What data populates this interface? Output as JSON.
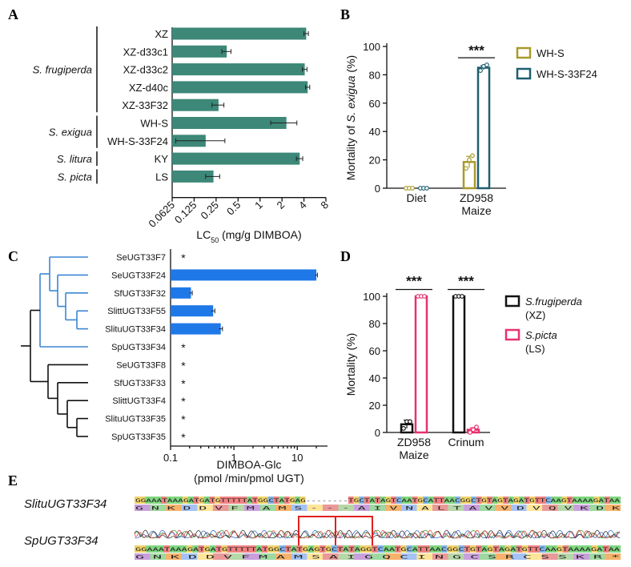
{
  "panels": {
    "A": "A",
    "B": "B",
    "C": "C",
    "D": "D",
    "E": "E"
  },
  "chart_data": [
    {
      "panel": "A",
      "type": "bar",
      "orientation": "horizontal",
      "scale": "log2",
      "categories": [
        "XZ",
        "XZ-d33c1",
        "XZ-d33c2",
        "XZ-d40c",
        "XZ-33F32",
        "WH-S",
        "WH-S-33F24",
        "KY",
        "LS"
      ],
      "groups": [
        {
          "label": "S. frugiperda",
          "members": [
            "XZ",
            "XZ-d33c1",
            "XZ-d33c2",
            "XZ-d40c",
            "XZ-33F32"
          ]
        },
        {
          "label": "S. exigua",
          "members": [
            "WH-S",
            "WH-S-33F24"
          ]
        },
        {
          "label": "S. litura",
          "members": [
            "KY"
          ]
        },
        {
          "label": "S. picta",
          "members": [
            "LS"
          ]
        }
      ],
      "values": [
        4.3,
        0.35,
        4.1,
        4.5,
        0.27,
        2.3,
        0.18,
        3.5,
        0.23
      ],
      "errors": [
        0.3,
        0.05,
        0.3,
        0.3,
        0.05,
        0.9,
        0.15,
        0.35,
        0.05
      ],
      "xticks": [
        "0.0625",
        "0.125",
        "0.25",
        "0.5",
        "1",
        "2",
        "4",
        "8"
      ],
      "xlabel_main": "LC",
      "xlabel_sub": "50",
      "xlabel_rest": " (mg/g DIMBOA)",
      "color": "#3d8878"
    },
    {
      "panel": "B",
      "type": "bar",
      "categories": [
        "Diet",
        "ZD958"
      ],
      "category_sublabels": [
        "",
        "Maize"
      ],
      "series": [
        {
          "name": "WH-S",
          "color": "#a89a2a",
          "values": [
            0,
            18.5
          ],
          "errors": [
            0,
            4
          ],
          "points": [
            [
              0,
              0,
              0
            ],
            [
              14,
              20,
              23
            ]
          ]
        },
        {
          "name": "WH-S-33F24",
          "color": "#1f5f70",
          "values": [
            0,
            85
          ],
          "errors": [
            0,
            1.5
          ],
          "points": [
            [
              0,
              0,
              0
            ],
            [
              83,
              86,
              87
            ]
          ]
        }
      ],
      "ylabel_prefix": "Mortality of ",
      "ylabel_italic": "S. exigua",
      "ylabel_suffix": " (%)",
      "yticks": [
        0,
        20,
        40,
        60,
        80,
        100
      ],
      "ylim": [
        0,
        100
      ],
      "significance": "***"
    },
    {
      "panel": "C",
      "type": "bar",
      "orientation": "horizontal",
      "scale": "log10",
      "categories": [
        "SeUGT33F7",
        "SeUGT33F24",
        "SfUGT33F32",
        "SlittUGT33F55",
        "SlituUGT33F34",
        "SpUGT33F34",
        "SeUGT33F8",
        "SfUGT33F33",
        "SlittUGT33F4",
        "SlituUGT33F35",
        "SpUGT33F35"
      ],
      "highlight": [
        true,
        true,
        true,
        true,
        true,
        true,
        false,
        false,
        false,
        false,
        false
      ],
      "values": [
        null,
        20,
        0.21,
        0.47,
        0.62,
        null,
        null,
        null,
        null,
        null,
        null
      ],
      "errors": [
        0,
        0.8,
        0.01,
        0.03,
        0.04,
        0,
        0,
        0,
        0,
        0,
        0
      ],
      "nd_marker": "*",
      "xticks": [
        "0.1",
        "1",
        "10"
      ],
      "xlabel": "DIMBOA-Glc",
      "xlabel2": "(pmol /min/pmol UGT)",
      "color": "#1f78e8",
      "highlight_color": "#3a86d4"
    },
    {
      "panel": "D",
      "type": "bar",
      "categories": [
        "ZD958",
        "Crinum"
      ],
      "category_sublabels": [
        "Maize",
        ""
      ],
      "series": [
        {
          "name": "S.frugiperda",
          "name2": "(XZ)",
          "color": "#111111",
          "values": [
            6,
            100
          ],
          "errors": [
            3,
            0
          ],
          "points": [
            [
              3,
              8,
              8
            ],
            [
              100,
              100,
              100
            ]
          ]
        },
        {
          "name": "S.picta",
          "name2": "(LS)",
          "color": "#e8316e",
          "values": [
            100,
            2
          ],
          "errors": [
            0,
            1.5
          ],
          "points": [
            [
              100,
              100,
              100
            ],
            [
              0,
              2,
              4
            ]
          ]
        }
      ],
      "ylabel": "Mortality (%)",
      "yticks": [
        0,
        20,
        40,
        60,
        80,
        100
      ],
      "ylim": [
        0,
        100
      ],
      "significance": [
        "***",
        "***"
      ]
    }
  ],
  "panel_e": {
    "label1": "SlituUGT33F34",
    "label2": "SpUGT33F34",
    "seq1": "GGAAATAAAGATGATGTTTTTATGGCTATGAG--------TGCTATAGTCAATGCATTAACGGCTGTAGTAGATGTTCAAGTAAAAGATAA",
    "aa1": "G  N  K  D  D  V  F  M  A  M  S  -  -  -  A  I  V  N  A  L  T  A  V  V  D  V  Q  V  K  D  K",
    "seq2": "GGAAATAAAGATGATGTTTTTATGGCTATGAGTGCTATAGGTCAATGCATTAACGGCTGTAGTAGATGTTCAAGTAAAAGATAA",
    "aa2": "G  N  K  D  D  V  F  M  A  M  S  A  I  G  Q  C  I  N  G  C  S  R  C  S  S  K  R  *"
  }
}
